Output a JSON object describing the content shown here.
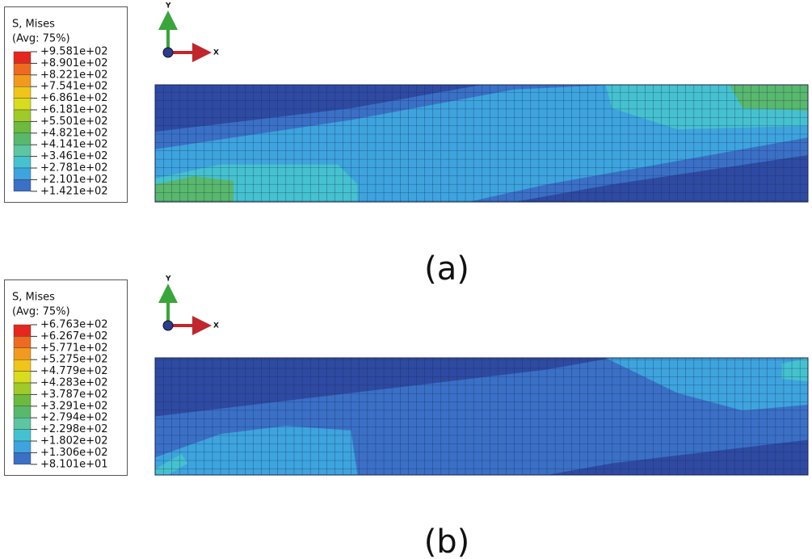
{
  "panels": [
    {
      "legend": {
        "title": "S, Mises",
        "subtitle": "(Avg: 75%)",
        "labels": [
          "+9.581e+02",
          "+8.901e+02",
          "+8.221e+02",
          "+7.541e+02",
          "+6.861e+02",
          "+6.181e+02",
          "+5.501e+02",
          "+4.821e+02",
          "+4.141e+02",
          "+3.461e+02",
          "+2.781e+02",
          "+2.101e+02",
          "+1.421e+02"
        ]
      },
      "axes": {
        "y": "Y",
        "x": "X"
      },
      "caption": "(a)"
    },
    {
      "legend": {
        "title": "S, Mises",
        "subtitle": "(Avg: 75%)",
        "labels": [
          "+6.763e+02",
          "+6.267e+02",
          "+5.771e+02",
          "+5.275e+02",
          "+4.779e+02",
          "+4.283e+02",
          "+3.787e+02",
          "+3.291e+02",
          "+2.794e+02",
          "+2.298e+02",
          "+1.802e+02",
          "+1.306e+02",
          "+8.101e+01"
        ]
      },
      "axes": {
        "y": "Y",
        "x": "X"
      },
      "caption": "(b)"
    }
  ]
}
